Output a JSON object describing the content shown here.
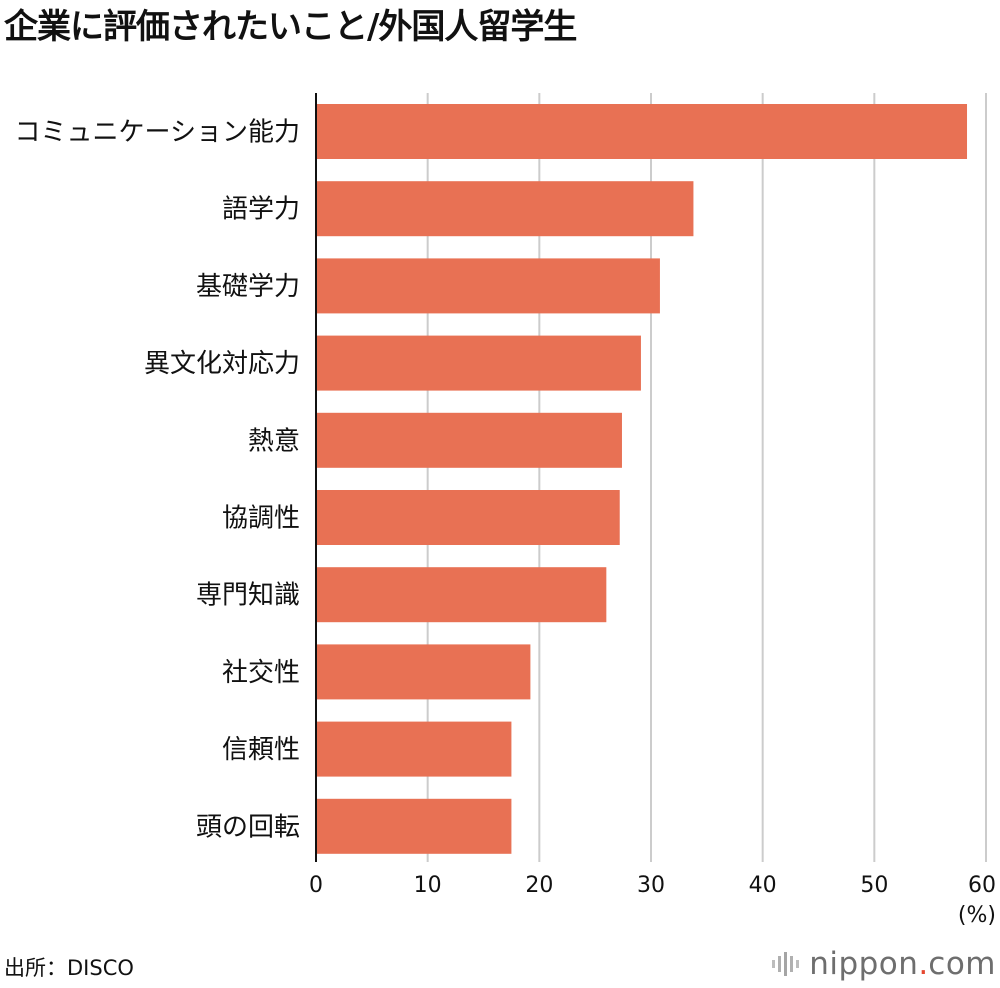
{
  "chart_data": {
    "type": "bar",
    "orientation": "horizontal",
    "title": "企業に評価されたいこと/外国人留学生",
    "categories": [
      "コミュニケーション能力",
      "語学力",
      "基礎学力",
      "異文化対応力",
      "熱意",
      "協調性",
      "専門知識",
      "社交性",
      "信頼性",
      "頭の回転"
    ],
    "values": [
      58.3,
      33.8,
      30.8,
      29.1,
      27.4,
      27.2,
      26.0,
      19.2,
      17.5,
      17.5
    ],
    "xlim": [
      0,
      60
    ],
    "xticks": [
      0,
      10,
      20,
      30,
      40,
      50,
      60
    ],
    "tick_labels": [
      "0",
      "10",
      "20",
      "30",
      "40",
      "50",
      "60"
    ],
    "unit_label": "(%)",
    "bar_color": "#e87154",
    "grid": true
  },
  "footer": {
    "source": "出所：DISCO",
    "brand_name": "nippon",
    "brand_dot": ".",
    "brand_tld": "com"
  }
}
